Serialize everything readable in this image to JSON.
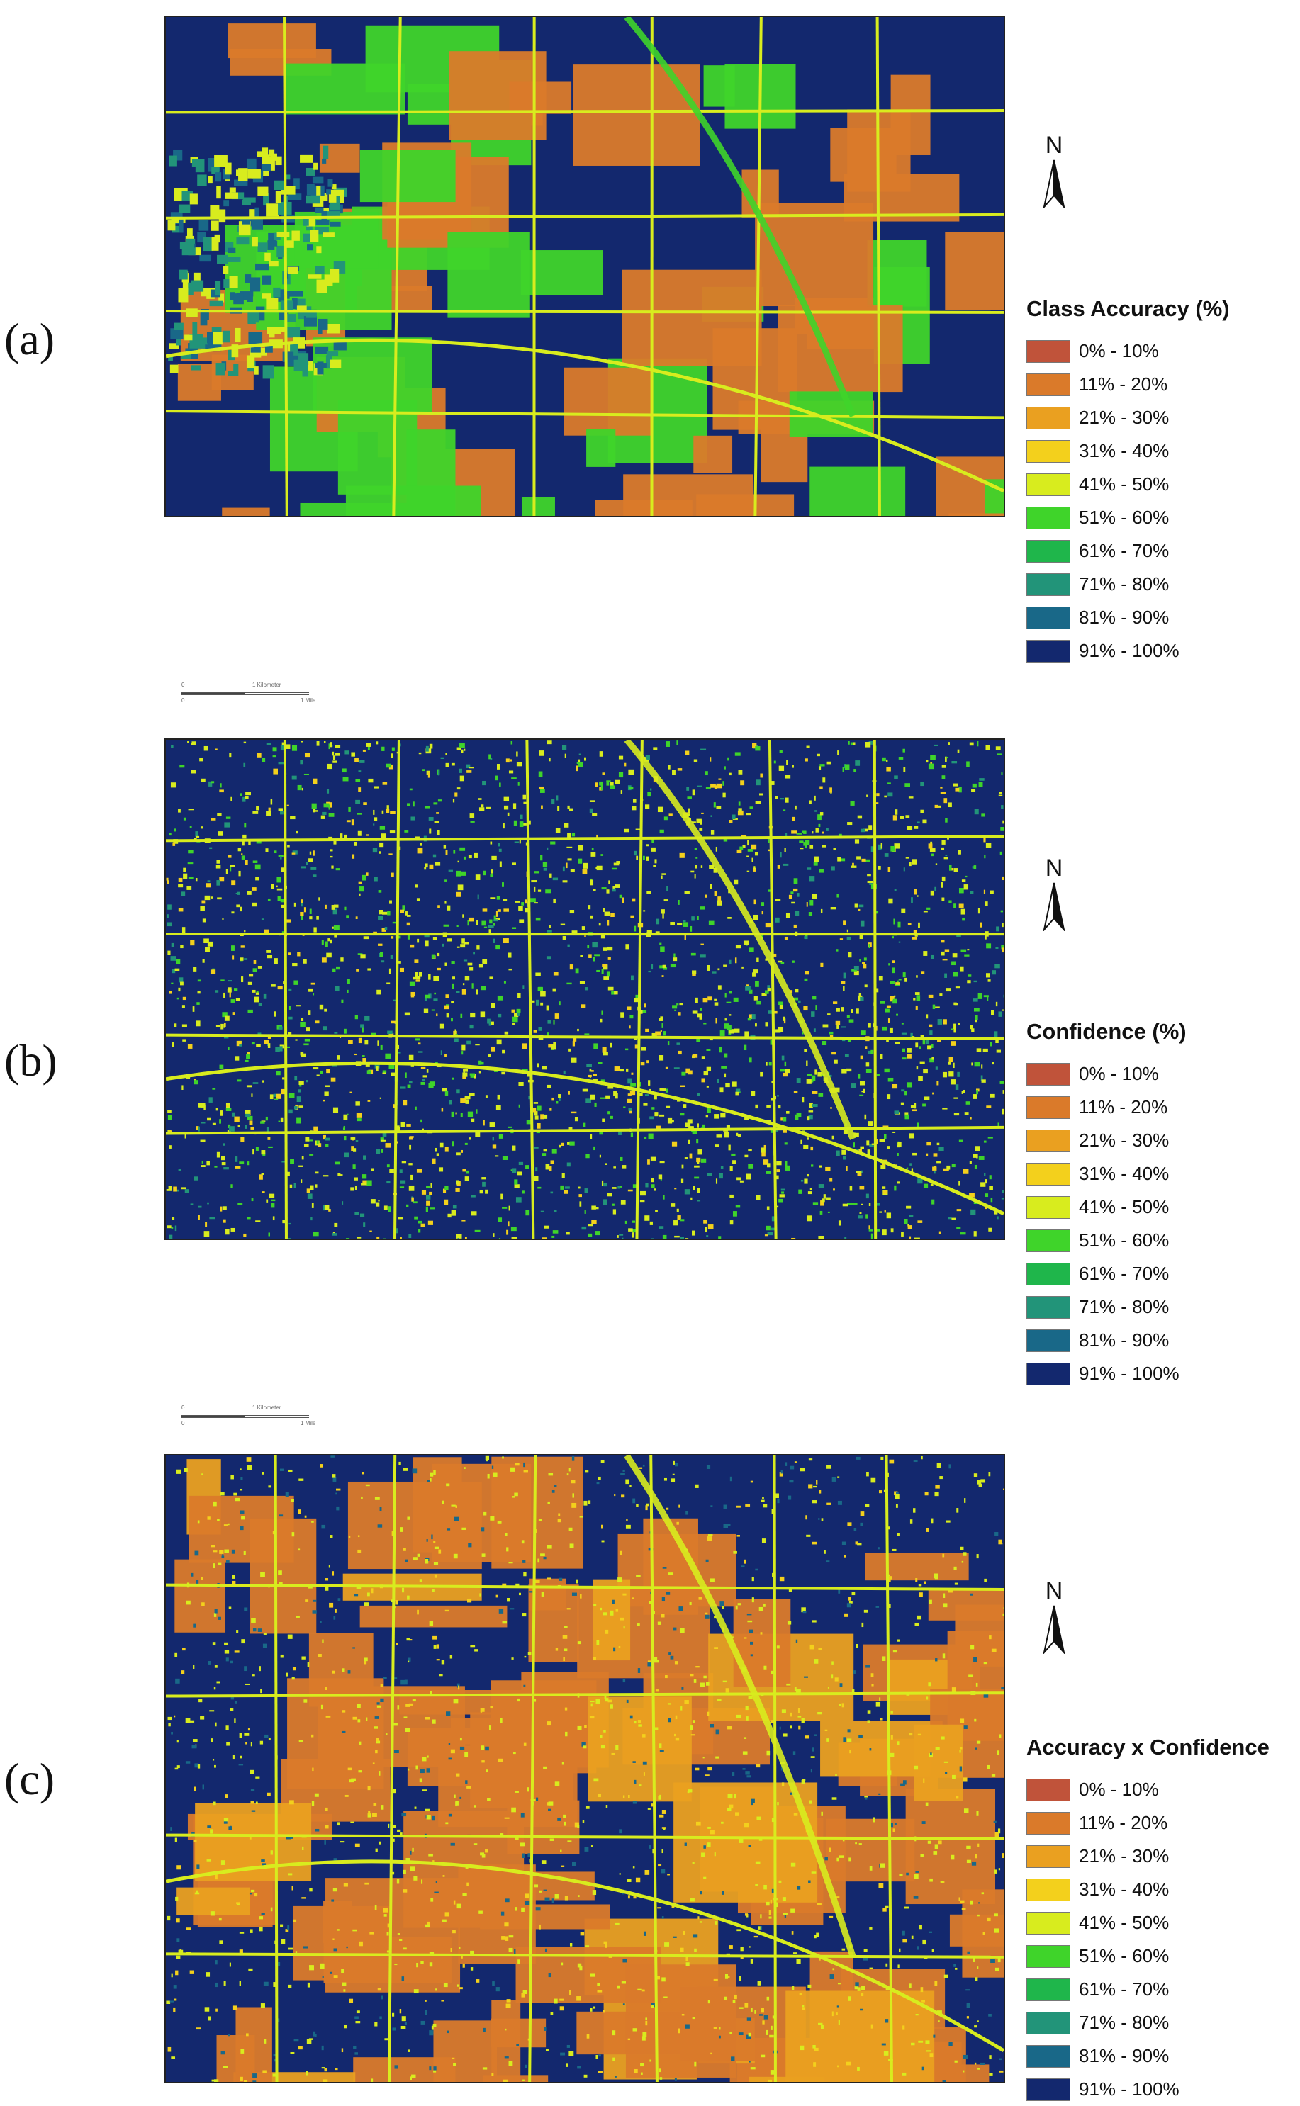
{
  "panels": [
    {
      "id": "a",
      "label": "(a)",
      "legend_title": "Class Accuracy (%)",
      "pattern": "classified"
    },
    {
      "id": "b",
      "label": "(b)",
      "legend_title": "Confidence (%)",
      "pattern": "speckled"
    },
    {
      "id": "c",
      "label": "(c)",
      "legend_title": "Accuracy x Confidence",
      "pattern": "mixed"
    }
  ],
  "legend_classes": [
    {
      "label": "0% - 10%",
      "color": "#c0533a"
    },
    {
      "label": "11% - 20%",
      "color": "#da7a2a"
    },
    {
      "label": "21% - 30%",
      "color": "#eaa020"
    },
    {
      "label": "31% - 40%",
      "color": "#f3d01c"
    },
    {
      "label": "41% - 50%",
      "color": "#d8ec1e"
    },
    {
      "label": "51% - 60%",
      "color": "#3fd42a"
    },
    {
      "label": "61% - 70%",
      "color": "#1fb64b"
    },
    {
      "label": "71% - 80%",
      "color": "#229479"
    },
    {
      "label": "81% - 90%",
      "color": "#196888"
    },
    {
      "label": "91% - 100%",
      "color": "#13286e"
    }
  ],
  "north_arrow": {
    "letter": "N",
    "icon": "north-arrow-icon"
  },
  "scalebar": {
    "km": "1 Kilometer",
    "mi": "1 Mile",
    "zero": "0"
  },
  "colors": {
    "background": "#ffffff",
    "map_base": "#13286e",
    "road": "#d8ec1e"
  }
}
